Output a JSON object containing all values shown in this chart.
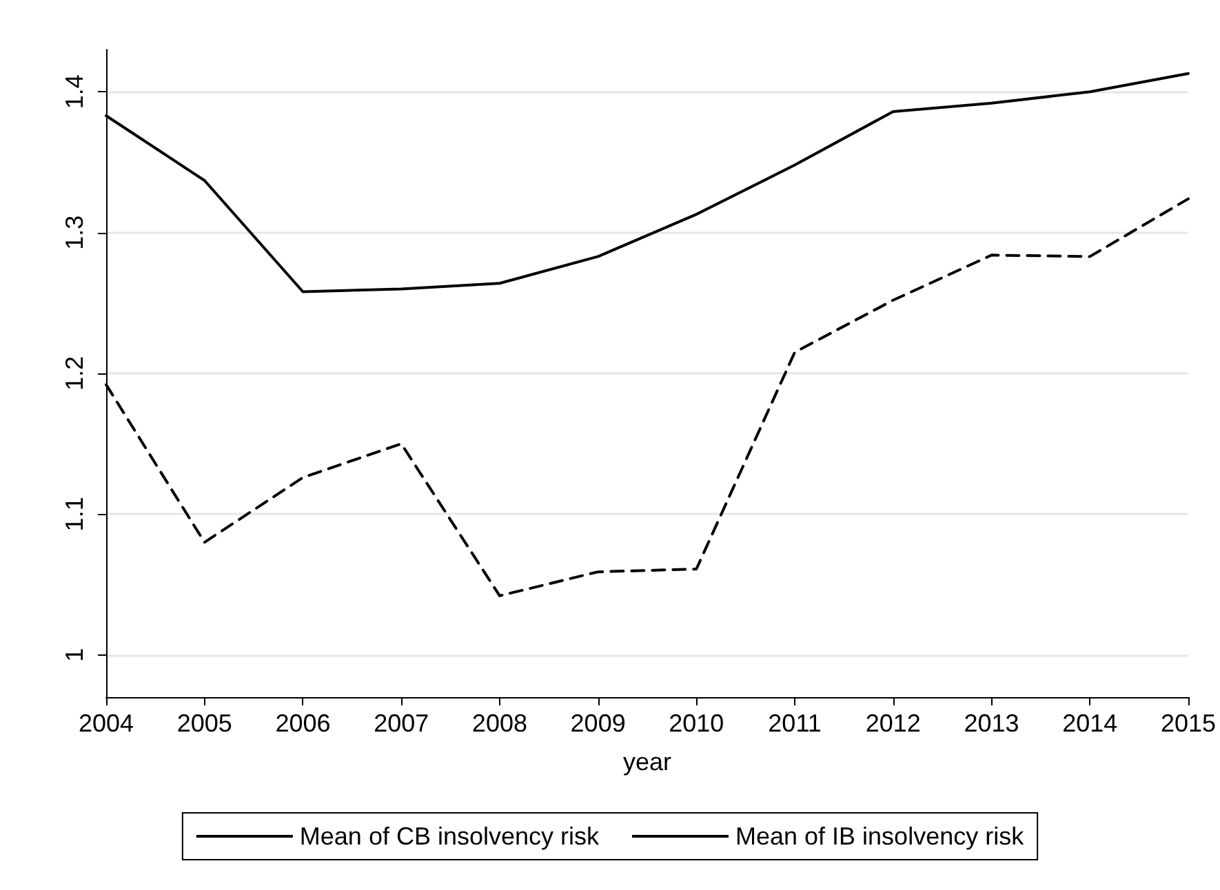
{
  "chart_data": {
    "type": "line",
    "xlabel": "year",
    "categories": [
      "2004",
      "2005",
      "2006",
      "2007",
      "2008",
      "2009",
      "2010",
      "2011",
      "2012",
      "2013",
      "2014",
      "2015"
    ],
    "series": [
      {
        "name": "Mean of CB insolvency risk",
        "color": "#000000",
        "line_style": "solid",
        "values": [
          1.383,
          1.337,
          1.258,
          1.26,
          1.264,
          1.283,
          1.313,
          1.348,
          1.386,
          1.392,
          1.4,
          1.413
        ]
      },
      {
        "name": "Mean of IB insolvency risk",
        "color": "#000000",
        "line_style": "dashed",
        "values": [
          1.192,
          1.08,
          1.126,
          1.15,
          1.042,
          1.059,
          1.061,
          1.215,
          1.252,
          1.284,
          1.283,
          1.324
        ]
      }
    ],
    "ylim": [
      0.97,
      1.43
    ],
    "yticks": [
      1,
      1.1,
      1.2,
      1.3,
      1.4
    ],
    "grid": "y",
    "legend": "bottom",
    "marker": "none"
  }
}
